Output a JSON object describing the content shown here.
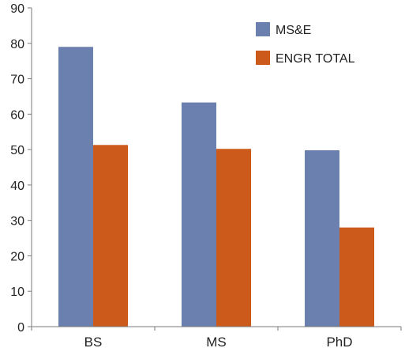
{
  "chart_data": {
    "type": "bar",
    "title": "",
    "xlabel": "",
    "ylabel": "",
    "categories": [
      "BS",
      "MS",
      "PhD"
    ],
    "series": [
      {
        "name": "MS&E",
        "values": [
          79,
          63.3,
          49.8
        ],
        "color": "#6c80af"
      },
      {
        "name": "ENGR TOTAL",
        "values": [
          51.3,
          50.2,
          28
        ],
        "color": "#cc5b1b"
      }
    ],
    "ylim": [
      0,
      90
    ],
    "yticks": [
      "0",
      "10",
      "20",
      "30",
      "40",
      "50",
      "60",
      "70",
      "80",
      "90"
    ],
    "grid": false,
    "legend": "top-right"
  }
}
